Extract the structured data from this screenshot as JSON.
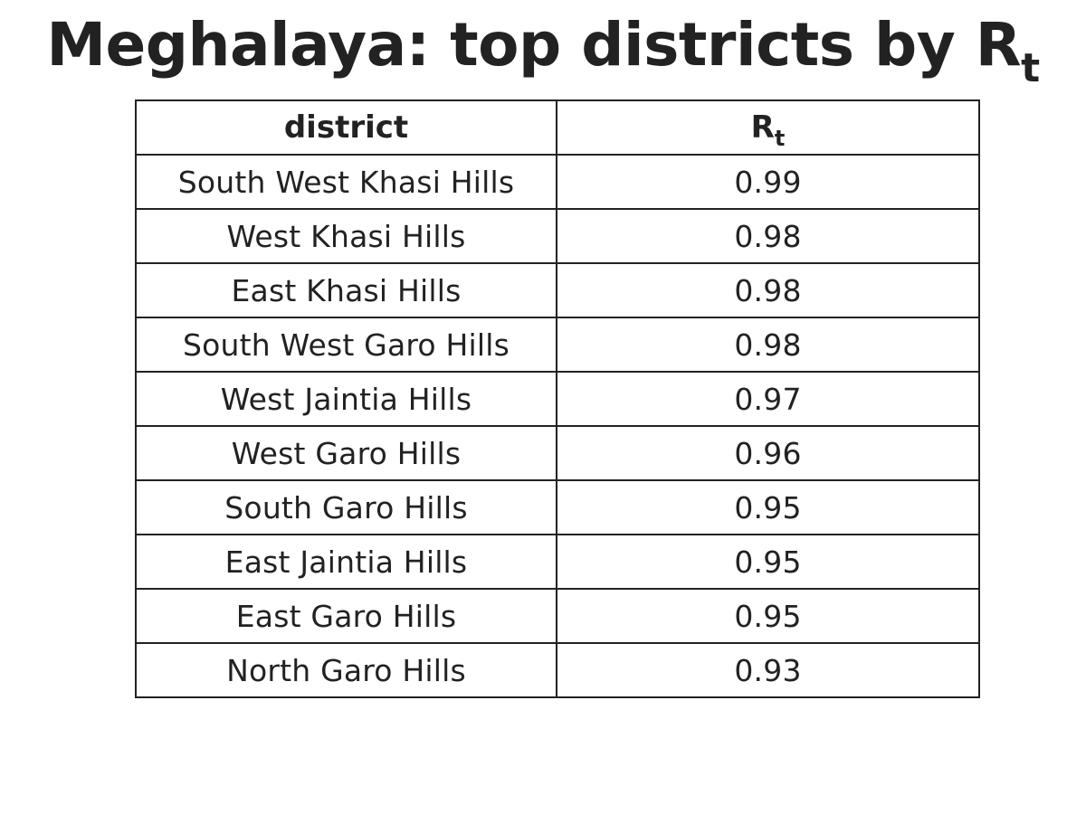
{
  "chart_data": {
    "type": "table",
    "title": {
      "main": "Meghalaya: top districts by R",
      "subscript": "t"
    },
    "columns": [
      {
        "label": "district",
        "subscript": ""
      },
      {
        "label": "R",
        "subscript": "t"
      }
    ],
    "rows": [
      {
        "district": "South West Khasi Hills",
        "rt": "0.99"
      },
      {
        "district": "West Khasi Hills",
        "rt": "0.98"
      },
      {
        "district": "East Khasi Hills",
        "rt": "0.98"
      },
      {
        "district": "South West Garo Hills",
        "rt": "0.98"
      },
      {
        "district": "West Jaintia Hills",
        "rt": "0.97"
      },
      {
        "district": "West Garo Hills",
        "rt": "0.96"
      },
      {
        "district": "South Garo Hills",
        "rt": "0.95"
      },
      {
        "district": "East Jaintia Hills",
        "rt": "0.95"
      },
      {
        "district": "East Garo Hills",
        "rt": "0.95"
      },
      {
        "district": "North Garo Hills",
        "rt": "0.93"
      }
    ]
  }
}
